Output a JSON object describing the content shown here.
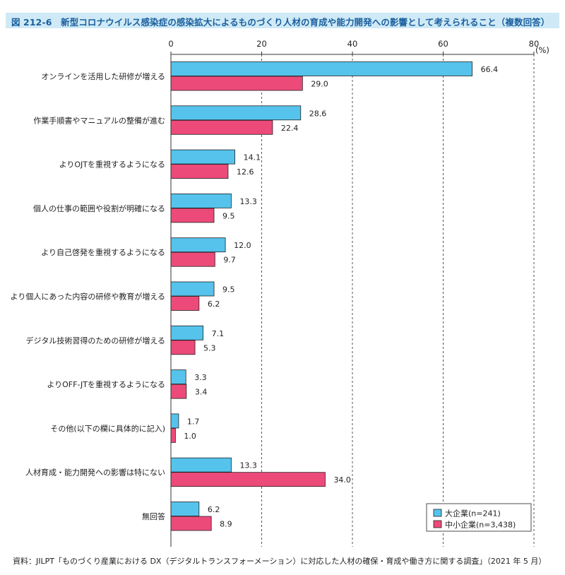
{
  "header": {
    "title": "図 212-6　新型コロナウイルス感染症の感染拡大によるものづくり人材の育成や能力開発への影響として考えられること（複数回答）"
  },
  "footer": {
    "source": "資料：JILPT「ものづくり産業における DX（デジタルトランスフォーメーション）に対応した人材の確保・育成や働き方に関する調査」（2021 年 5 月）"
  },
  "chart_data": {
    "type": "bar",
    "orientation": "horizontal",
    "title": "",
    "xlabel": "",
    "ylabel": "",
    "unit": "(%)",
    "xlim": [
      0,
      80
    ],
    "ticks": [
      0,
      20,
      40,
      60,
      80
    ],
    "grid": "vertical dashed",
    "legend_position": "bottom-right",
    "categories": [
      "オンラインを活用した研修が増える",
      "作業手順書やマニュアルの整備が進む",
      "よりOJTを重視するようになる",
      "個人の仕事の範囲や役割が明確になる",
      "より自己啓発を重視するようになる",
      "より個人にあった内容の研修や教育が増える",
      "デジタル技術習得のための研修が増える",
      "よりOFF-JTを重視するようになる",
      "その他(以下の欄に具体的に記入)",
      "人材育成・能力開発への影響は特にない",
      "無回答"
    ],
    "series": [
      {
        "name": "大企業(n=241)",
        "color": "#55c3ec",
        "values": [
          66.4,
          28.6,
          14.1,
          13.3,
          12.0,
          9.5,
          7.1,
          3.3,
          1.7,
          13.3,
          6.2
        ],
        "labels": [
          "66.4",
          "28.6",
          "14.1",
          "13.3",
          "12.0",
          "9.5",
          "7.1",
          "3.3",
          "1.7",
          "13.3",
          "6.2"
        ]
      },
      {
        "name": "中小企業(n=3,438)",
        "color": "#ec4a79",
        "values": [
          29.0,
          22.4,
          12.6,
          9.5,
          9.7,
          6.2,
          5.3,
          3.4,
          1.0,
          34.0,
          8.9
        ],
        "labels": [
          "29.0",
          "22.4",
          "12.6",
          "9.5",
          "9.7",
          "6.2",
          "5.3",
          "3.4",
          "1.0",
          "34.0",
          "8.9"
        ]
      }
    ]
  }
}
